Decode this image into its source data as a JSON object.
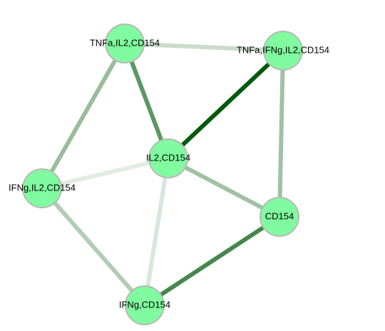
{
  "colors": {
    "background": "#ffffff",
    "node_fill": "#80fb9f",
    "node_stroke": "#b8b8b8",
    "label": "#000000",
    "edge_strong": "#005a0a"
  },
  "nodes": [
    {
      "id": "n1",
      "label": "TNFa,IL2,CD154"
    },
    {
      "id": "n2",
      "label": "TNFa,IFNg,IL2,CD154"
    },
    {
      "id": "n3",
      "label": "IL2,CD154"
    },
    {
      "id": "n4",
      "label": "IFNg,IL2,CD154"
    },
    {
      "id": "n5",
      "label": "CD154"
    },
    {
      "id": "n6",
      "label": "IFNg,CD154"
    }
  ],
  "edges": [
    {
      "source": "n2",
      "target": "n3",
      "strength": 1.0
    },
    {
      "source": "n5",
      "target": "n6",
      "strength": 0.72
    },
    {
      "source": "n1",
      "target": "n3",
      "strength": 0.62
    },
    {
      "source": "n1",
      "target": "n4",
      "strength": 0.38
    },
    {
      "source": "n2",
      "target": "n5",
      "strength": 0.35
    },
    {
      "source": "n3",
      "target": "n5",
      "strength": 0.35
    },
    {
      "source": "n4",
      "target": "n6",
      "strength": 0.28
    },
    {
      "source": "n1",
      "target": "n2",
      "strength": 0.18
    },
    {
      "source": "n3",
      "target": "n6",
      "strength": 0.12
    },
    {
      "source": "n3",
      "target": "n4",
      "strength": 0.08
    }
  ]
}
